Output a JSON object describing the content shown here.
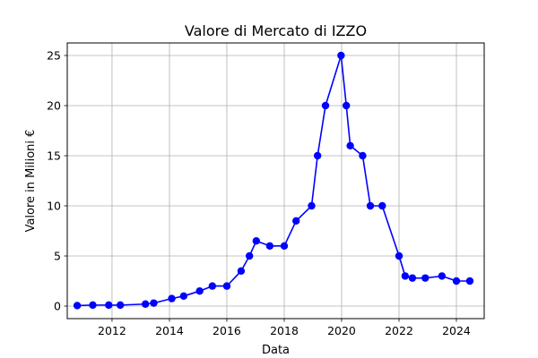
{
  "chart_data": {
    "type": "line",
    "title": "Valore di Mercato di IZZO",
    "xlabel": "Data",
    "ylabel": "Valore in Milioni €",
    "x_type": "date",
    "xlim": [
      "2010-06-10",
      "2024-12-20"
    ],
    "ylim": [
      -1.25,
      26.25
    ],
    "xticks": [
      "2012",
      "2014",
      "2016",
      "2018",
      "2020",
      "2022",
      "2024"
    ],
    "yticks": [
      "0",
      "5",
      "10",
      "15",
      "20",
      "25"
    ],
    "grid": true,
    "legend": "none",
    "series": [
      {
        "color": "#0000ff",
        "marker": "circle",
        "points": [
          {
            "date": "2010-10-15",
            "value": 0.05
          },
          {
            "date": "2011-05-01",
            "value": 0.1
          },
          {
            "date": "2011-11-20",
            "value": 0.1
          },
          {
            "date": "2012-04-15",
            "value": 0.1
          },
          {
            "date": "2013-03-01",
            "value": 0.2
          },
          {
            "date": "2013-06-15",
            "value": 0.3
          },
          {
            "date": "2014-01-30",
            "value": 0.75
          },
          {
            "date": "2014-07-01",
            "value": 1.0
          },
          {
            "date": "2015-01-20",
            "value": 1.5
          },
          {
            "date": "2015-07-01",
            "value": 2.0
          },
          {
            "date": "2016-01-01",
            "value": 2.0
          },
          {
            "date": "2016-07-01",
            "value": 3.5
          },
          {
            "date": "2016-10-15",
            "value": 5.0
          },
          {
            "date": "2017-01-10",
            "value": 6.5
          },
          {
            "date": "2017-07-01",
            "value": 6.0
          },
          {
            "date": "2018-01-01",
            "value": 6.0
          },
          {
            "date": "2018-06-01",
            "value": 8.5
          },
          {
            "date": "2018-12-15",
            "value": 10.0
          },
          {
            "date": "2019-03-01",
            "value": 15.0
          },
          {
            "date": "2019-06-10",
            "value": 20.0
          },
          {
            "date": "2019-12-25",
            "value": 25.0
          },
          {
            "date": "2020-03-01",
            "value": 20.0
          },
          {
            "date": "2020-04-20",
            "value": 16.0
          },
          {
            "date": "2020-09-25",
            "value": 15.0
          },
          {
            "date": "2021-01-01",
            "value": 10.0
          },
          {
            "date": "2021-06-01",
            "value": 10.0
          },
          {
            "date": "2022-01-01",
            "value": 5.0
          },
          {
            "date": "2022-03-20",
            "value": 3.0
          },
          {
            "date": "2022-06-20",
            "value": 2.8
          },
          {
            "date": "2022-12-01",
            "value": 2.8
          },
          {
            "date": "2023-07-01",
            "value": 3.0
          },
          {
            "date": "2024-01-01",
            "value": 2.5
          },
          {
            "date": "2024-06-20",
            "value": 2.5
          }
        ]
      }
    ]
  }
}
